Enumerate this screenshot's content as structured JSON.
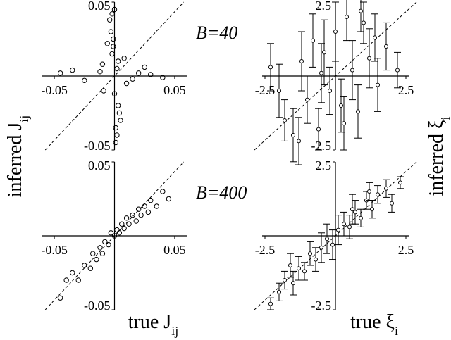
{
  "chart_data": [
    {
      "type": "scatter",
      "ylabel": "inferred J",
      "ylabel_sub": "ij",
      "annotation": "B=40",
      "xlim": [
        -0.06,
        0.06
      ],
      "ylim": [
        -0.05,
        0.05
      ],
      "xticks": [
        -0.05,
        0.05
      ],
      "yticks": [
        -0.05,
        0.05
      ],
      "x": [
        0,
        0.002,
        -0.003,
        0.001,
        -0.001,
        0.004,
        -0.002,
        0.003,
        0,
        -0.004,
        0.02,
        -0.025,
        0.03,
        -0.035,
        0.015,
        -0.012,
        0.04,
        -0.045,
        0.008,
        -0.009,
        0.001,
        -0.002,
        0.003,
        -0.001,
        0.002,
        0.01,
        -0.01,
        0.005,
        -0.006,
        0.025
      ],
      "y": [
        0.045,
        -0.04,
        0.03,
        -0.035,
        0.02,
        -0.025,
        0.015,
        0.01,
        -0.012,
        0.038,
        0.002,
        -0.003,
        0.001,
        0.004,
        -0.002,
        0.003,
        -0.001,
        0.002,
        0.012,
        -0.01,
        -0.045,
        0.042,
        -0.02,
        0.025,
        0.005,
        -0.005,
        0.008,
        -0.03,
        0.022,
        0.006
      ]
    },
    {
      "type": "errorbar",
      "ylabel": "inferred ξ",
      "ylabel_sub": "i",
      "xlim": [
        -2.6,
        2.6
      ],
      "ylim": [
        -2.5,
        2.5
      ],
      "xticks": [
        -2.5,
        2.5
      ],
      "yticks": [
        -2.5,
        2.5
      ],
      "x": [
        -2.3,
        -1.8,
        -1.5,
        -1.2,
        -1,
        -0.8,
        -0.6,
        -0.4,
        -0.2,
        0,
        0.2,
        0.4,
        0.6,
        0.8,
        1,
        1.2,
        1.5,
        1.8,
        2.2,
        -2,
        -1.3,
        -0.5,
        0.3,
        0.9,
        1.4
      ],
      "y": [
        0.3,
        -1.5,
        -2,
        0.5,
        -0.8,
        1.2,
        -1.8,
        0.8,
        -0.5,
        1.5,
        -1,
        2,
        0.2,
        -1.2,
        1.8,
        0.6,
        -0.3,
        1,
        0.2,
        -0.5,
        -2.2,
        0.1,
        -1.6,
        2.2,
        1.3
      ],
      "errors": [
        0.8,
        0.7,
        0.9,
        1,
        0.8,
        0.9,
        0.7,
        1.1,
        0.8,
        1,
        0.9,
        0.8,
        1,
        0.9,
        0.7,
        1,
        0.9,
        0.8,
        0.6,
        0.9,
        0.8,
        1,
        0.9,
        0.7,
        0.8
      ]
    },
    {
      "type": "scatter",
      "xlabel": "true J",
      "xlabel_sub": "ij",
      "annotation": "B=400",
      "xlim": [
        -0.06,
        0.06
      ],
      "ylim": [
        -0.05,
        0.05
      ],
      "xticks": [
        -0.05,
        0.05
      ],
      "yticks": [
        -0.05,
        0.05
      ],
      "x": [
        -0.04,
        -0.035,
        -0.03,
        -0.025,
        -0.02,
        -0.018,
        -0.015,
        -0.012,
        -0.01,
        -0.008,
        -0.005,
        -0.003,
        0,
        0.002,
        0.004,
        0.006,
        0.008,
        0.01,
        0.012,
        0.015,
        0.018,
        0.02,
        0.022,
        0.025,
        0.028,
        0.03,
        0.035,
        0.04,
        0.045,
        -0.045
      ],
      "y": [
        -0.03,
        -0.025,
        -0.03,
        -0.02,
        -0.022,
        -0.012,
        -0.016,
        -0.008,
        -0.012,
        -0.004,
        -0.006,
        0.002,
        0,
        0.004,
        0.002,
        0.008,
        0.005,
        0.012,
        0.008,
        0.014,
        0.01,
        0.018,
        0.014,
        0.02,
        0.016,
        0.024,
        0.02,
        0.03,
        0.025,
        -0.042
      ]
    },
    {
      "type": "errorbar",
      "xlabel": "true ξ",
      "xlabel_sub": "i",
      "xlim": [
        -2.6,
        2.6
      ],
      "ylim": [
        -2.5,
        2.5
      ],
      "xticks": [
        -2.5,
        2.5
      ],
      "yticks": [
        -2.5,
        2.5
      ],
      "x": [
        -2.3,
        -2,
        -1.8,
        -1.5,
        -1.3,
        -1.1,
        -0.9,
        -0.7,
        -0.5,
        -0.3,
        -0.1,
        0.1,
        0.3,
        0.5,
        0.7,
        0.9,
        1.1,
        1.3,
        1.5,
        1.8,
        2,
        2.3,
        -1.6,
        0.6,
        1.2
      ],
      "y": [
        -2.3,
        -1.9,
        -1.5,
        -1.6,
        -1.1,
        -1.2,
        -0.6,
        -0.8,
        -0.4,
        -0.1,
        -0.3,
        0.2,
        0.4,
        0.3,
        0.8,
        0.6,
        1.2,
        0.9,
        1.4,
        1.6,
        1.1,
        1.8,
        -1,
        0.9,
        1.5
      ],
      "errors": [
        0.2,
        0.3,
        0.3,
        0.4,
        0.4,
        0.3,
        0.4,
        0.4,
        0.5,
        0.5,
        0.5,
        0.5,
        0.4,
        0.4,
        0.4,
        0.3,
        0.3,
        0.3,
        0.3,
        0.3,
        0.3,
        0.2,
        0.4,
        0.5,
        0.3
      ]
    }
  ]
}
